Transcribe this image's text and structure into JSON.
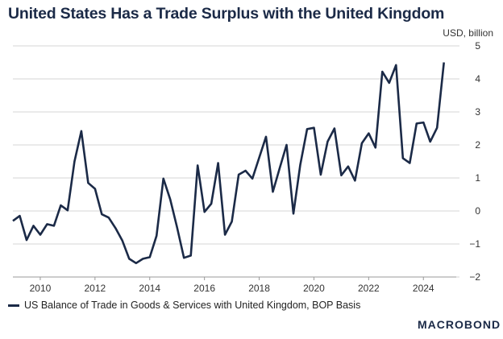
{
  "chart_data": {
    "type": "line",
    "title": "United States Has a Trade Surplus with the United Kingdom",
    "unit_label": "USD, billion",
    "xlim": [
      2009.0,
      2025.2
    ],
    "ylim": [
      -2.2,
      5.2
    ],
    "x_ticks": [
      2010,
      2012,
      2014,
      2016,
      2018,
      2020,
      2022,
      2024
    ],
    "y_ticks": [
      -2,
      -1,
      0,
      1,
      2,
      3,
      4,
      5
    ],
    "grid": "horizontal",
    "legend_position": "bottom-left",
    "series": [
      {
        "name": "US Balance of Trade in Goods & Services with United Kingdom, BOP Basis",
        "color": "#1b2a47",
        "x": [
          2009.0,
          2009.25,
          2009.5,
          2009.75,
          2010.0,
          2010.25,
          2010.5,
          2010.75,
          2011.0,
          2011.25,
          2011.5,
          2011.75,
          2012.0,
          2012.25,
          2012.5,
          2012.75,
          2013.0,
          2013.25,
          2013.5,
          2013.75,
          2014.0,
          2014.25,
          2014.5,
          2014.75,
          2015.0,
          2015.25,
          2015.5,
          2015.75,
          2016.0,
          2016.25,
          2016.5,
          2016.75,
          2017.0,
          2017.25,
          2017.5,
          2017.75,
          2018.0,
          2018.25,
          2018.5,
          2018.75,
          2019.0,
          2019.25,
          2019.5,
          2019.75,
          2020.0,
          2020.25,
          2020.5,
          2020.75,
          2021.0,
          2021.25,
          2021.5,
          2021.75,
          2022.0,
          2022.25,
          2022.5,
          2022.75,
          2023.0,
          2023.25,
          2023.5,
          2023.75,
          2024.0,
          2024.25,
          2024.5,
          2024.75
        ],
        "values": [
          -0.3,
          -0.15,
          -0.88,
          -0.45,
          -0.72,
          -0.4,
          -0.45,
          0.17,
          0.02,
          1.5,
          2.42,
          0.85,
          0.67,
          -0.1,
          -0.2,
          -0.52,
          -0.9,
          -1.45,
          -1.58,
          -1.45,
          -1.4,
          -0.75,
          0.98,
          0.35,
          -0.5,
          -1.42,
          -1.35,
          1.38,
          -0.03,
          0.22,
          1.45,
          -0.72,
          -0.32,
          1.1,
          1.22,
          0.98,
          1.62,
          2.25,
          0.58,
          1.3,
          2.0,
          -0.08,
          1.4,
          2.48,
          2.52,
          1.1,
          2.1,
          2.5,
          1.08,
          1.35,
          0.92,
          2.05,
          2.35,
          1.92,
          4.22,
          3.88,
          4.42,
          1.6,
          1.45,
          2.65,
          2.68,
          2.1,
          2.52,
          4.5
        ]
      }
    ]
  },
  "footer": {
    "brand": "MACROBOND"
  }
}
